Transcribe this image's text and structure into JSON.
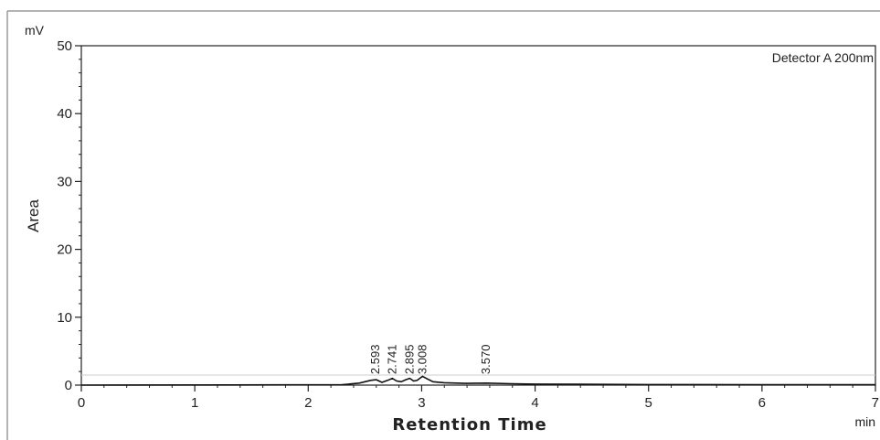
{
  "chart_data": {
    "type": "line",
    "ylabel": "Area",
    "xlabel": "Retention Time",
    "y_unit": "mV",
    "x_unit": "min",
    "detector": "Detector A 200nm",
    "xlim": [
      0,
      7
    ],
    "ylim": [
      0,
      50
    ],
    "x_ticks": [
      "0",
      "1",
      "2",
      "3",
      "4",
      "5",
      "6",
      "7"
    ],
    "y_ticks": [
      "0",
      "10",
      "20",
      "30",
      "40",
      "50"
    ],
    "grid": false,
    "peak_labels": [
      "2.593",
      "2.741",
      "2.895",
      "3.008",
      "3.570"
    ],
    "peak_times": [
      2.593,
      2.741,
      2.895,
      3.008,
      3.57
    ],
    "series": [
      {
        "x": [
          0,
          2.3,
          2.45,
          2.55,
          2.6,
          2.65,
          2.7,
          2.741,
          2.78,
          2.82,
          2.86,
          2.895,
          2.93,
          2.96,
          3.0,
          3.008,
          3.04,
          3.1,
          3.2,
          3.4,
          3.57,
          3.8,
          4.0,
          5.0,
          6.0,
          7.0
        ],
        "y": [
          0,
          0.05,
          0.3,
          0.7,
          0.8,
          0.4,
          0.7,
          1.0,
          0.6,
          0.5,
          0.8,
          1.0,
          0.6,
          0.7,
          1.2,
          1.3,
          1.0,
          0.5,
          0.35,
          0.25,
          0.3,
          0.2,
          0.15,
          0.08,
          0.05,
          0.05
        ],
        "color": "#111111"
      }
    ],
    "colors": {
      "trace": "#111111",
      "axis": "#222222",
      "baseline": "#cccccc"
    }
  }
}
